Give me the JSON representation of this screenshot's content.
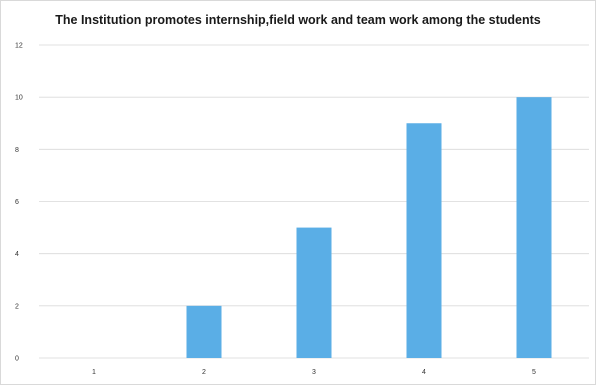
{
  "chart_data": {
    "type": "bar",
    "title": "The Institution promotes internship,field work and team work among the students",
    "categories": [
      "1",
      "2",
      "3",
      "4",
      "5"
    ],
    "values": [
      0,
      2,
      5,
      9,
      10
    ],
    "xlabel": "",
    "ylabel": "",
    "ylim": [
      0,
      12
    ],
    "yticks": [
      "0",
      "2",
      "4",
      "6",
      "8",
      "10",
      "12"
    ],
    "grid": true,
    "legend": "none",
    "bar_color": "#5aaee6",
    "grid_color": "#d9d9d9"
  }
}
